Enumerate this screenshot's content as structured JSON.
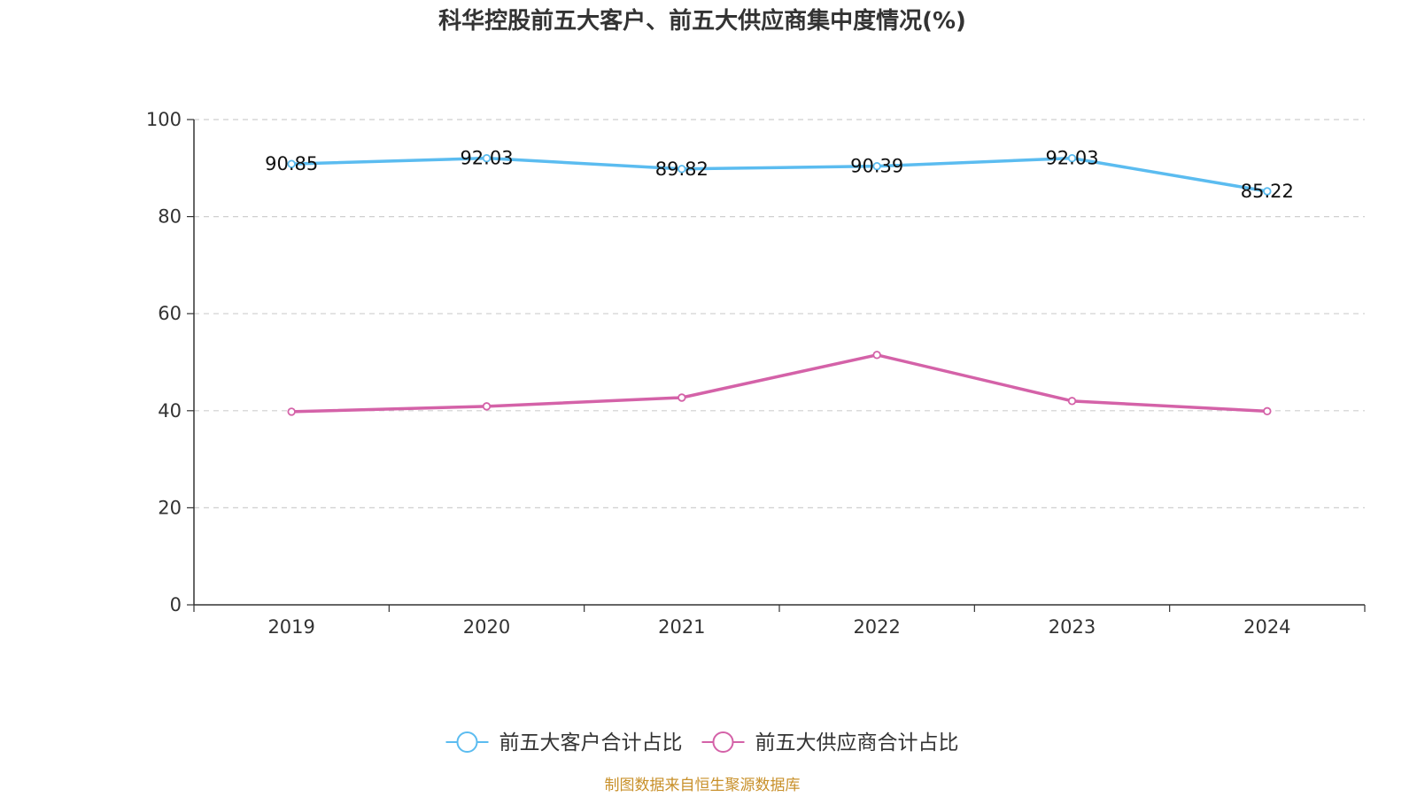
{
  "chart_data": {
    "type": "line",
    "title": "科华控股前五大客户、前五大供应商集中度情况(%)",
    "categories": [
      "2019",
      "2020",
      "2021",
      "2022",
      "2023",
      "2024"
    ],
    "series": [
      {
        "name": "前五大客户合计占比",
        "values": [
          90.85,
          92.03,
          89.82,
          90.39,
          92.03,
          85.22
        ],
        "labels": [
          "90.85",
          "92.03",
          "89.82",
          "90.39",
          "92.03",
          "85.22"
        ],
        "color": "#5bbcf0",
        "show_labels": true
      },
      {
        "name": "前五大供应商合计占比",
        "values": [
          39.8,
          40.9,
          42.7,
          51.5,
          42.0,
          39.9
        ],
        "color": "#d462a8",
        "show_labels": false
      }
    ],
    "ylim": [
      0,
      100
    ],
    "yticks": [
      "0",
      "20",
      "40",
      "60",
      "80",
      "100"
    ],
    "grid": true,
    "legend_position": "bottom-center",
    "xlabel": "",
    "ylabel": ""
  },
  "source": "制图数据来自恒生聚源数据库"
}
